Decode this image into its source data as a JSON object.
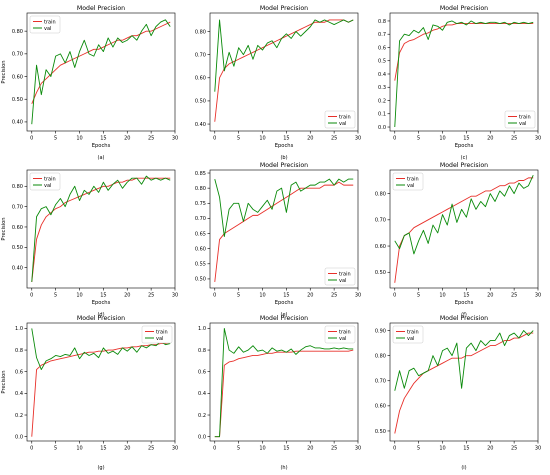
{
  "colors": {
    "train": "#e8302a",
    "val": "#0a8a0a",
    "axis": "#000000"
  },
  "chart_data": [
    {
      "type": "line",
      "title": "Model Precision",
      "xlabel": "Epochs",
      "ylabel": "Precision",
      "caption": "(a)",
      "legend": "top-left",
      "xlim": [
        -1,
        30
      ],
      "ylim": [
        0.36,
        0.88
      ],
      "xticks": [
        0,
        5,
        10,
        15,
        20,
        25,
        30
      ],
      "yticks": [
        0.4,
        0.5,
        0.6,
        0.7,
        0.8
      ],
      "x": [
        0,
        1,
        2,
        3,
        4,
        5,
        6,
        7,
        8,
        9,
        10,
        11,
        12,
        13,
        14,
        15,
        16,
        17,
        18,
        19,
        20,
        21,
        22,
        23,
        24,
        25,
        26,
        27,
        28,
        29
      ],
      "series": [
        {
          "name": "train",
          "values": [
            0.48,
            0.53,
            0.57,
            0.59,
            0.61,
            0.63,
            0.65,
            0.66,
            0.67,
            0.68,
            0.69,
            0.7,
            0.71,
            0.72,
            0.72,
            0.73,
            0.74,
            0.75,
            0.76,
            0.76,
            0.77,
            0.78,
            0.78,
            0.79,
            0.8,
            0.8,
            0.81,
            0.82,
            0.83,
            0.84
          ]
        },
        {
          "name": "val",
          "values": [
            0.39,
            0.65,
            0.52,
            0.63,
            0.6,
            0.69,
            0.7,
            0.66,
            0.71,
            0.64,
            0.71,
            0.76,
            0.7,
            0.69,
            0.74,
            0.71,
            0.77,
            0.73,
            0.77,
            0.75,
            0.76,
            0.78,
            0.76,
            0.8,
            0.83,
            0.78,
            0.82,
            0.84,
            0.85,
            0.82
          ]
        }
      ]
    },
    {
      "type": "line",
      "title": "Model Precision",
      "xlabel": "Epochs",
      "ylabel": "",
      "caption": "(b)",
      "legend": "bottom-right",
      "xlim": [
        -1,
        30
      ],
      "ylim": [
        0.37,
        0.88
      ],
      "xticks": [
        0,
        5,
        10,
        15,
        20,
        25,
        30
      ],
      "yticks": [
        0.4,
        0.5,
        0.6,
        0.7,
        0.8
      ],
      "x": [
        0,
        1,
        2,
        3,
        4,
        5,
        6,
        7,
        8,
        9,
        10,
        11,
        12,
        13,
        14,
        15,
        16,
        17,
        18,
        19,
        20,
        21,
        22,
        23,
        24,
        25,
        26,
        27,
        28,
        29
      ],
      "series": [
        {
          "name": "train",
          "values": [
            0.41,
            0.6,
            0.64,
            0.66,
            0.67,
            0.68,
            0.69,
            0.7,
            0.71,
            0.72,
            0.73,
            0.74,
            0.75,
            0.76,
            0.77,
            0.78,
            0.79,
            0.8,
            0.81,
            0.82,
            0.83,
            0.84,
            0.84,
            0.84,
            0.85,
            0.85,
            0.85,
            0.85,
            0.84,
            0.85
          ]
        },
        {
          "name": "val",
          "values": [
            0.54,
            0.85,
            0.63,
            0.71,
            0.65,
            0.73,
            0.7,
            0.74,
            0.68,
            0.74,
            0.72,
            0.75,
            0.76,
            0.73,
            0.77,
            0.79,
            0.77,
            0.8,
            0.78,
            0.8,
            0.82,
            0.85,
            0.84,
            0.85,
            0.84,
            0.83,
            0.84,
            0.85,
            0.84,
            0.85
          ]
        }
      ]
    },
    {
      "type": "line",
      "title": "Model Precision",
      "xlabel": "Epochs",
      "ylabel": "",
      "caption": "(c)",
      "legend": "bottom-right",
      "xlim": [
        -1,
        30
      ],
      "ylim": [
        -0.03,
        0.86
      ],
      "xticks": [
        0,
        5,
        10,
        15,
        20,
        25,
        30
      ],
      "yticks": [
        0.0,
        0.1,
        0.2,
        0.3,
        0.4,
        0.5,
        0.6,
        0.7,
        0.8
      ],
      "x": [
        0,
        1,
        2,
        3,
        4,
        5,
        6,
        7,
        8,
        9,
        10,
        11,
        12,
        13,
        14,
        15,
        16,
        17,
        18,
        19,
        20,
        21,
        22,
        23,
        24,
        25,
        26,
        27,
        28,
        29
      ],
      "series": [
        {
          "name": "train",
          "values": [
            0.35,
            0.56,
            0.63,
            0.65,
            0.66,
            0.68,
            0.7,
            0.71,
            0.73,
            0.74,
            0.76,
            0.77,
            0.77,
            0.78,
            0.78,
            0.78,
            0.78,
            0.78,
            0.78,
            0.78,
            0.78,
            0.78,
            0.78,
            0.78,
            0.78,
            0.78,
            0.78,
            0.78,
            0.78,
            0.78
          ]
        },
        {
          "name": "val",
          "values": [
            0.0,
            0.65,
            0.7,
            0.69,
            0.73,
            0.71,
            0.75,
            0.66,
            0.77,
            0.76,
            0.73,
            0.79,
            0.8,
            0.78,
            0.79,
            0.77,
            0.8,
            0.78,
            0.79,
            0.78,
            0.79,
            0.79,
            0.78,
            0.79,
            0.77,
            0.79,
            0.78,
            0.79,
            0.78,
            0.79
          ]
        }
      ]
    },
    {
      "type": "line",
      "title": "",
      "xlabel": "Epochs",
      "ylabel": "Precision",
      "caption": "(d)",
      "legend": "top-left",
      "xlim": [
        -1,
        30
      ],
      "ylim": [
        0.3,
        0.88
      ],
      "xticks": [
        0,
        5,
        10,
        15,
        20,
        25,
        30
      ],
      "yticks": [
        0.4,
        0.5,
        0.6,
        0.7,
        0.8
      ],
      "x": [
        0,
        1,
        2,
        3,
        4,
        5,
        6,
        7,
        8,
        9,
        10,
        11,
        12,
        13,
        14,
        15,
        16,
        17,
        18,
        19,
        20,
        21,
        22,
        23,
        24,
        25,
        26,
        27,
        28,
        29
      ],
      "series": [
        {
          "name": "train",
          "values": [
            0.33,
            0.54,
            0.61,
            0.65,
            0.67,
            0.69,
            0.7,
            0.72,
            0.73,
            0.74,
            0.75,
            0.76,
            0.77,
            0.78,
            0.79,
            0.8,
            0.8,
            0.81,
            0.82,
            0.82,
            0.83,
            0.83,
            0.84,
            0.84,
            0.84,
            0.84,
            0.84,
            0.84,
            0.84,
            0.84
          ]
        },
        {
          "name": "val",
          "values": [
            0.33,
            0.65,
            0.69,
            0.7,
            0.66,
            0.71,
            0.74,
            0.7,
            0.76,
            0.8,
            0.73,
            0.78,
            0.76,
            0.8,
            0.77,
            0.82,
            0.78,
            0.81,
            0.83,
            0.79,
            0.82,
            0.84,
            0.84,
            0.81,
            0.85,
            0.83,
            0.84,
            0.83,
            0.84,
            0.83
          ]
        }
      ]
    },
    {
      "type": "line",
      "title": "Model Precision",
      "xlabel": "Epochs",
      "ylabel": "",
      "caption": "(e)",
      "legend": "bottom-right",
      "xlim": [
        -1,
        30
      ],
      "ylim": [
        0.47,
        0.86
      ],
      "xticks": [
        0,
        5,
        10,
        15,
        20,
        25,
        30
      ],
      "yticks": [
        0.5,
        0.55,
        0.6,
        0.65,
        0.7,
        0.75,
        0.8,
        0.85
      ],
      "x": [
        0,
        1,
        2,
        3,
        4,
        5,
        6,
        7,
        8,
        9,
        10,
        11,
        12,
        13,
        14,
        15,
        16,
        17,
        18,
        19,
        20,
        21,
        22,
        23,
        24,
        25,
        26,
        27,
        28,
        29
      ],
      "series": [
        {
          "name": "train",
          "values": [
            0.49,
            0.63,
            0.65,
            0.66,
            0.67,
            0.68,
            0.69,
            0.7,
            0.71,
            0.71,
            0.72,
            0.73,
            0.74,
            0.75,
            0.76,
            0.77,
            0.78,
            0.79,
            0.8,
            0.8,
            0.8,
            0.8,
            0.8,
            0.81,
            0.81,
            0.81,
            0.82,
            0.81,
            0.81,
            0.81
          ]
        },
        {
          "name": "val",
          "values": [
            0.83,
            0.77,
            0.64,
            0.73,
            0.75,
            0.75,
            0.69,
            0.75,
            0.73,
            0.72,
            0.74,
            0.76,
            0.73,
            0.79,
            0.8,
            0.72,
            0.81,
            0.82,
            0.79,
            0.8,
            0.81,
            0.81,
            0.82,
            0.82,
            0.83,
            0.81,
            0.83,
            0.82,
            0.83,
            0.83
          ]
        }
      ]
    },
    {
      "type": "line",
      "title": "Model Precision",
      "xlabel": "Epochs",
      "ylabel": "",
      "caption": "(f)",
      "legend": "top-left",
      "xlim": [
        -1,
        30
      ],
      "ylim": [
        0.44,
        0.89
      ],
      "xticks": [
        0,
        5,
        10,
        15,
        20,
        25,
        30
      ],
      "yticks": [
        0.5,
        0.6,
        0.7,
        0.8
      ],
      "x": [
        0,
        1,
        2,
        3,
        4,
        5,
        6,
        7,
        8,
        9,
        10,
        11,
        12,
        13,
        14,
        15,
        16,
        17,
        18,
        19,
        20,
        21,
        22,
        23,
        24,
        25,
        26,
        27,
        28,
        29
      ],
      "series": [
        {
          "name": "train",
          "values": [
            0.46,
            0.6,
            0.64,
            0.65,
            0.67,
            0.68,
            0.69,
            0.7,
            0.71,
            0.72,
            0.73,
            0.74,
            0.75,
            0.76,
            0.77,
            0.78,
            0.79,
            0.79,
            0.8,
            0.81,
            0.81,
            0.82,
            0.83,
            0.83,
            0.84,
            0.84,
            0.85,
            0.85,
            0.86,
            0.86
          ]
        },
        {
          "name": "val",
          "values": [
            0.62,
            0.59,
            0.64,
            0.65,
            0.57,
            0.62,
            0.66,
            0.61,
            0.68,
            0.65,
            0.72,
            0.68,
            0.76,
            0.69,
            0.74,
            0.71,
            0.78,
            0.74,
            0.77,
            0.75,
            0.8,
            0.77,
            0.81,
            0.79,
            0.83,
            0.8,
            0.84,
            0.82,
            0.83,
            0.87
          ]
        }
      ]
    },
    {
      "type": "line",
      "title": "Model Precision",
      "xlabel": "",
      "ylabel": "Precision",
      "caption": "(g)",
      "legend": "top-right",
      "xlim": [
        -1,
        30
      ],
      "ylim": [
        -0.04,
        1.05
      ],
      "xticks": [
        0,
        5,
        10,
        15,
        20,
        25,
        30
      ],
      "yticks": [
        0.0,
        0.2,
        0.4,
        0.6,
        0.8,
        1.0
      ],
      "x": [
        0,
        1,
        2,
        3,
        4,
        5,
        6,
        7,
        8,
        9,
        10,
        11,
        12,
        13,
        14,
        15,
        16,
        17,
        18,
        19,
        20,
        21,
        22,
        23,
        24,
        25,
        26,
        27,
        28,
        29
      ],
      "series": [
        {
          "name": "train",
          "values": [
            0.0,
            0.62,
            0.66,
            0.68,
            0.7,
            0.71,
            0.72,
            0.73,
            0.74,
            0.75,
            0.76,
            0.77,
            0.78,
            0.78,
            0.79,
            0.79,
            0.8,
            0.8,
            0.81,
            0.82,
            0.82,
            0.83,
            0.83,
            0.84,
            0.84,
            0.85,
            0.85,
            0.86,
            0.86,
            0.87
          ]
        },
        {
          "name": "val",
          "values": [
            1.0,
            0.73,
            0.62,
            0.7,
            0.72,
            0.75,
            0.74,
            0.76,
            0.75,
            0.82,
            0.72,
            0.78,
            0.75,
            0.77,
            0.73,
            0.82,
            0.77,
            0.79,
            0.76,
            0.82,
            0.79,
            0.83,
            0.78,
            0.84,
            0.82,
            0.85,
            0.84,
            0.88,
            0.85,
            0.86
          ]
        }
      ]
    },
    {
      "type": "line",
      "title": "Model Precision",
      "xlabel": "",
      "ylabel": "",
      "caption": "(h)",
      "legend": "top-right",
      "xlim": [
        -1,
        30
      ],
      "ylim": [
        -0.04,
        1.05
      ],
      "xticks": [
        0,
        5,
        10,
        15,
        20,
        25,
        30
      ],
      "yticks": [
        0.0,
        0.2,
        0.4,
        0.6,
        0.8,
        1.0
      ],
      "x": [
        0,
        1,
        2,
        3,
        4,
        5,
        6,
        7,
        8,
        9,
        10,
        11,
        12,
        13,
        14,
        15,
        16,
        17,
        18,
        19,
        20,
        21,
        22,
        23,
        24,
        25,
        26,
        27,
        28,
        29
      ],
      "series": [
        {
          "name": "train",
          "values": [
            0.0,
            0.0,
            0.66,
            0.69,
            0.7,
            0.72,
            0.73,
            0.74,
            0.75,
            0.75,
            0.76,
            0.77,
            0.77,
            0.78,
            0.78,
            0.78,
            0.78,
            0.79,
            0.79,
            0.79,
            0.79,
            0.79,
            0.79,
            0.79,
            0.79,
            0.79,
            0.79,
            0.79,
            0.79,
            0.8
          ]
        },
        {
          "name": "val",
          "values": [
            0.0,
            0.0,
            1.0,
            0.8,
            0.77,
            0.83,
            0.78,
            0.8,
            0.84,
            0.79,
            0.8,
            0.77,
            0.82,
            0.79,
            0.8,
            0.78,
            0.81,
            0.76,
            0.8,
            0.83,
            0.84,
            0.82,
            0.82,
            0.81,
            0.81,
            0.82,
            0.81,
            0.82,
            0.81,
            0.81
          ]
        }
      ]
    },
    {
      "type": "line",
      "title": "Model Precision",
      "xlabel": "",
      "ylabel": "",
      "caption": "(i)",
      "legend": "top-left",
      "xlim": [
        -1,
        30
      ],
      "ylim": [
        0.46,
        0.93
      ],
      "xticks": [
        0,
        5,
        10,
        15,
        20,
        25,
        30
      ],
      "yticks": [
        0.5,
        0.6,
        0.7,
        0.8,
        0.9
      ],
      "x": [
        0,
        1,
        2,
        3,
        4,
        5,
        6,
        7,
        8,
        9,
        10,
        11,
        12,
        13,
        14,
        15,
        16,
        17,
        18,
        19,
        20,
        21,
        22,
        23,
        24,
        25,
        26,
        27,
        28,
        29
      ],
      "series": [
        {
          "name": "train",
          "values": [
            0.49,
            0.58,
            0.63,
            0.66,
            0.69,
            0.71,
            0.73,
            0.74,
            0.75,
            0.76,
            0.77,
            0.78,
            0.79,
            0.79,
            0.79,
            0.8,
            0.8,
            0.81,
            0.82,
            0.83,
            0.84,
            0.84,
            0.85,
            0.86,
            0.86,
            0.87,
            0.87,
            0.88,
            0.89,
            0.89
          ]
        },
        {
          "name": "val",
          "values": [
            0.66,
            0.74,
            0.67,
            0.74,
            0.75,
            0.72,
            0.73,
            0.74,
            0.8,
            0.76,
            0.82,
            0.83,
            0.8,
            0.85,
            0.67,
            0.83,
            0.85,
            0.82,
            0.86,
            0.84,
            0.86,
            0.86,
            0.89,
            0.84,
            0.88,
            0.89,
            0.87,
            0.9,
            0.88,
            0.9
          ]
        }
      ]
    }
  ]
}
